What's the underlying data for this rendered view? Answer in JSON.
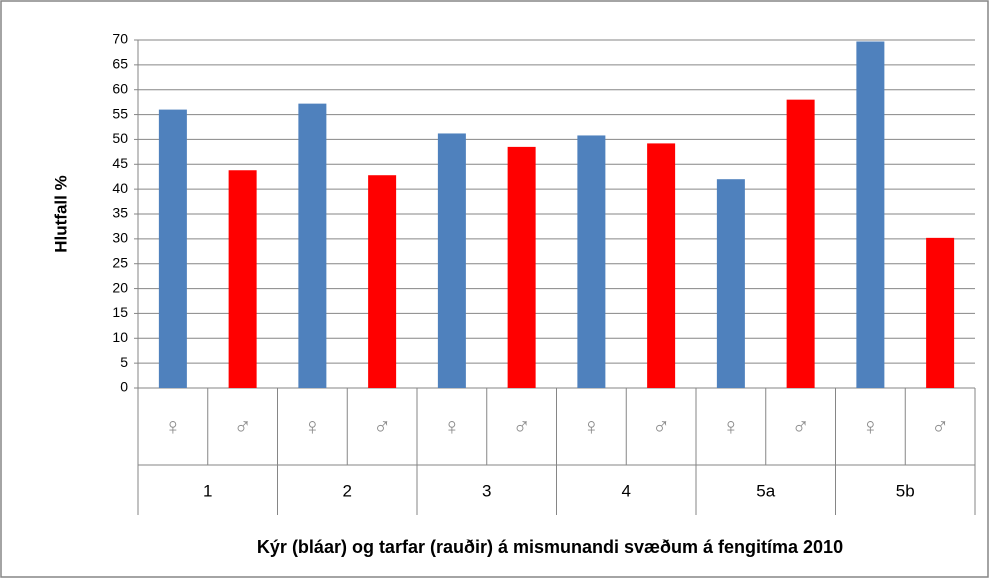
{
  "chart_data": {
    "type": "bar",
    "y_label": "Hlutfall %",
    "x_label": "Kýr (bláar) og tarfar (rauðir) á mismunandi svæðum á fengitíma 2010",
    "categories": [
      "♀",
      "♂",
      "♀",
      "♂",
      "♀",
      "♂",
      "♀",
      "♂",
      "♀",
      "♂",
      "♀",
      "♂"
    ],
    "groups": [
      "1",
      "2",
      "3",
      "4",
      "5a",
      "5b"
    ],
    "values": [
      56,
      43.8,
      57.2,
      42.8,
      51.2,
      48.5,
      50.8,
      49.2,
      42,
      58,
      69.7,
      30.2
    ],
    "colors": [
      "#4f81bd",
      "#ff0000",
      "#4f81bd",
      "#ff0000",
      "#4f81bd",
      "#ff0000",
      "#4f81bd",
      "#ff0000",
      "#4f81bd",
      "#ff0000",
      "#4f81bd",
      "#ff0000"
    ],
    "ylim": [
      0,
      70
    ],
    "yticks": [
      0,
      5,
      10,
      15,
      20,
      25,
      30,
      35,
      40,
      45,
      50,
      55,
      60,
      65,
      70
    ],
    "grid": true
  }
}
